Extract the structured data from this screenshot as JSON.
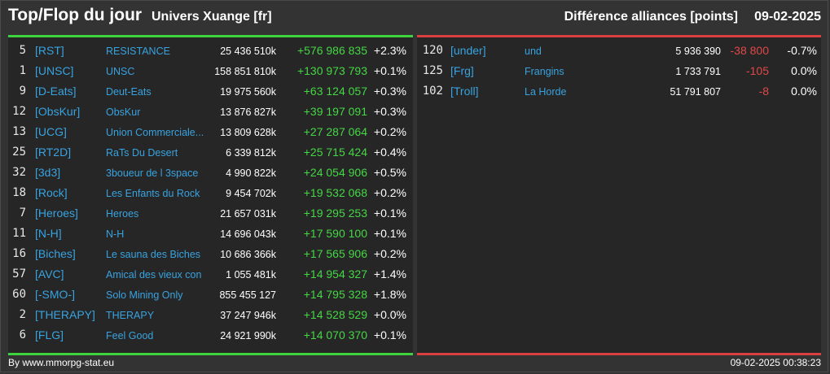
{
  "header": {
    "title": "Top/Flop du jour",
    "universe": "Univers Xuange [fr]",
    "subtitle": "Différence alliances [points]",
    "date": "09-02-2025"
  },
  "colors": {
    "top_accent": "#3fd23f",
    "flop_accent": "#d94040",
    "tag_color": "#38a3e0"
  },
  "top": [
    {
      "rank": "5",
      "tag": "[RST]",
      "name": "RESISTANCE",
      "points": "25 436 510k",
      "diff": "+576 986 835",
      "pct": "+2.3%"
    },
    {
      "rank": "1",
      "tag": "[UNSC]",
      "name": "UNSC",
      "points": "158 851 810k",
      "diff": "+130 973 793",
      "pct": "+0.1%"
    },
    {
      "rank": "9",
      "tag": "[D-Eats]",
      "name": "Deut-Eats",
      "points": "19 975 560k",
      "diff": "+63 124 057",
      "pct": "+0.3%"
    },
    {
      "rank": "12",
      "tag": "[ObsKur]",
      "name": "ObsKur",
      "points": "13 876 827k",
      "diff": "+39 197 091",
      "pct": "+0.3%"
    },
    {
      "rank": "13",
      "tag": "[UCG]",
      "name": "Union Commerciale...",
      "points": "13 809 628k",
      "diff": "+27 287 064",
      "pct": "+0.2%"
    },
    {
      "rank": "25",
      "tag": "[RT2D]",
      "name": "RaTs Du Desert",
      "points": "6 339 812k",
      "diff": "+25 715 424",
      "pct": "+0.4%"
    },
    {
      "rank": "32",
      "tag": "[3d3]",
      "name": "3boueur de l 3space",
      "points": "4 990 822k",
      "diff": "+24 054 906",
      "pct": "+0.5%"
    },
    {
      "rank": "18",
      "tag": "[Rock]",
      "name": "Les Enfants du Rock",
      "points": "9 454 702k",
      "diff": "+19 532 068",
      "pct": "+0.2%"
    },
    {
      "rank": "7",
      "tag": "[Heroes]",
      "name": "Heroes",
      "points": "21 657 031k",
      "diff": "+19 295 253",
      "pct": "+0.1%"
    },
    {
      "rank": "11",
      "tag": "[N-H]",
      "name": "N-H",
      "points": "14 696 043k",
      "diff": "+17 590 100",
      "pct": "+0.1%"
    },
    {
      "rank": "16",
      "tag": "[Biches]",
      "name": "Le sauna des Biches",
      "points": "10 686 366k",
      "diff": "+17 565 906",
      "pct": "+0.2%"
    },
    {
      "rank": "57",
      "tag": "[AVC]",
      "name": "Amical des vieux con",
      "points": "1 055 481k",
      "diff": "+14 954 327",
      "pct": "+1.4%"
    },
    {
      "rank": "60",
      "tag": "[-SMO-]",
      "name": "Solo Mining Only",
      "points": "855 455 127",
      "diff": "+14 795 328",
      "pct": "+1.8%"
    },
    {
      "rank": "2",
      "tag": "[THERAPY]",
      "name": "THERAPY",
      "points": "37 247 946k",
      "diff": "+14 528 529",
      "pct": "+0.0%"
    },
    {
      "rank": "6",
      "tag": "[FLG]",
      "name": "Feel Good",
      "points": "24 921 990k",
      "diff": "+14 070 370",
      "pct": "+0.1%"
    }
  ],
  "flop": [
    {
      "rank": "120",
      "tag": "[under]",
      "name": "und",
      "points": "5 936 390",
      "diff": "-38 800",
      "pct": "-0.7%"
    },
    {
      "rank": "125",
      "tag": "[Frg]",
      "name": "Frangins",
      "points": "1 733 791",
      "diff": "-105",
      "pct": "0.0%"
    },
    {
      "rank": "102",
      "tag": "[Troll]",
      "name": "La Horde",
      "points": "51 791 807",
      "diff": "-8",
      "pct": "0.0%"
    }
  ],
  "footer": {
    "source": "By www.mmorpg-stat.eu",
    "timestamp": "09-02-2025 00:38:23"
  }
}
